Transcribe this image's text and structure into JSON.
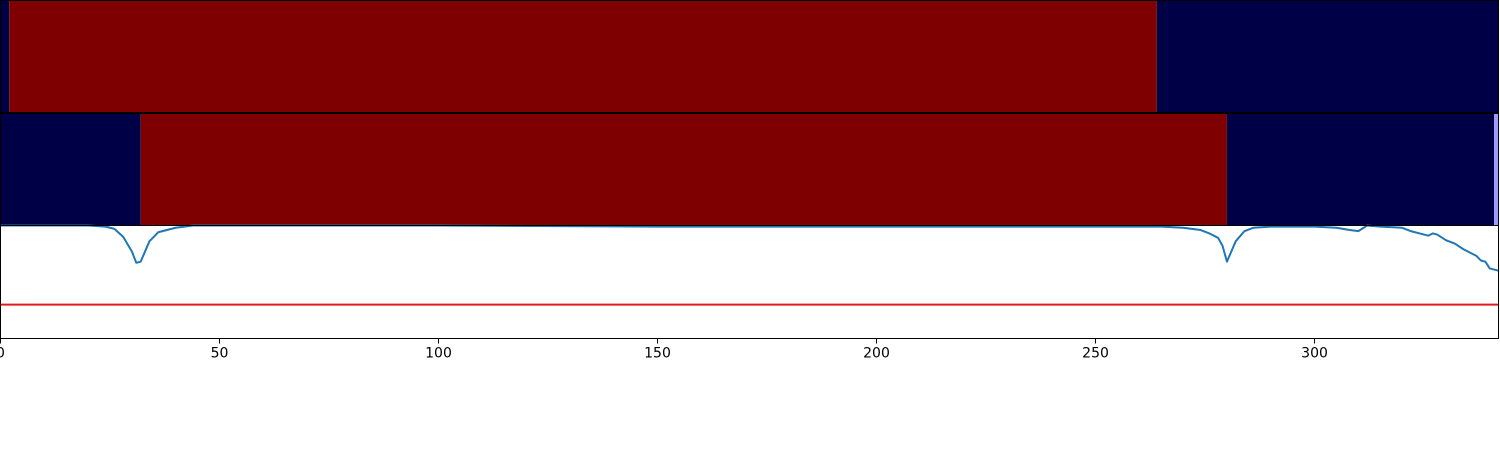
{
  "chart_data": {
    "type": "line",
    "title": "",
    "xlabel": "",
    "ylabel": "",
    "xlim": [
      0,
      342
    ],
    "x_ticks": [
      0,
      50,
      100,
      150,
      200,
      250,
      300
    ],
    "grid": false,
    "legend": "none",
    "colors": {
      "low_state": "#000047",
      "high_state": "#7f0000",
      "edge_state": "#9999ff",
      "score_line": "#1f77b4",
      "threshold_line": "#e31a1c"
    },
    "state_tracks": [
      {
        "segments": [
          {
            "start": 0,
            "end": 2,
            "state": "low"
          },
          {
            "start": 2,
            "end": 264,
            "state": "high"
          },
          {
            "start": 264,
            "end": 342,
            "state": "low"
          }
        ]
      },
      {
        "segments": [
          {
            "start": 0,
            "end": 32,
            "state": "low"
          },
          {
            "start": 32,
            "end": 280,
            "state": "high"
          },
          {
            "start": 280,
            "end": 341,
            "state": "low"
          },
          {
            "start": 341,
            "end": 342,
            "state": "edge"
          }
        ]
      }
    ],
    "score_panel": {
      "ylim": [
        0.0,
        1.0
      ],
      "threshold": 0.3,
      "series": {
        "x": [
          0,
          10,
          20,
          24,
          26,
          28,
          30,
          31,
          32,
          34,
          36,
          38,
          40,
          44,
          60,
          100,
          150,
          200,
          250,
          265,
          270,
          274,
          276,
          278,
          279,
          280,
          282,
          284,
          286,
          290,
          300,
          305,
          308,
          310,
          312,
          315,
          320,
          322,
          324,
          326,
          327,
          328,
          330,
          332,
          334,
          336,
          337,
          338,
          339,
          340,
          342
        ],
        "y": [
          1.0,
          1.0,
          1.0,
          0.99,
          0.97,
          0.9,
          0.77,
          0.67,
          0.68,
          0.86,
          0.94,
          0.96,
          0.98,
          1.0,
          1.0,
          1.0,
          0.99,
          0.99,
          0.99,
          0.99,
          0.98,
          0.96,
          0.93,
          0.89,
          0.82,
          0.68,
          0.86,
          0.95,
          0.98,
          0.99,
          0.99,
          0.98,
          0.96,
          0.95,
          1.0,
          0.99,
          0.98,
          0.95,
          0.93,
          0.91,
          0.93,
          0.92,
          0.87,
          0.84,
          0.79,
          0.75,
          0.73,
          0.69,
          0.68,
          0.62,
          0.6
        ]
      }
    }
  }
}
